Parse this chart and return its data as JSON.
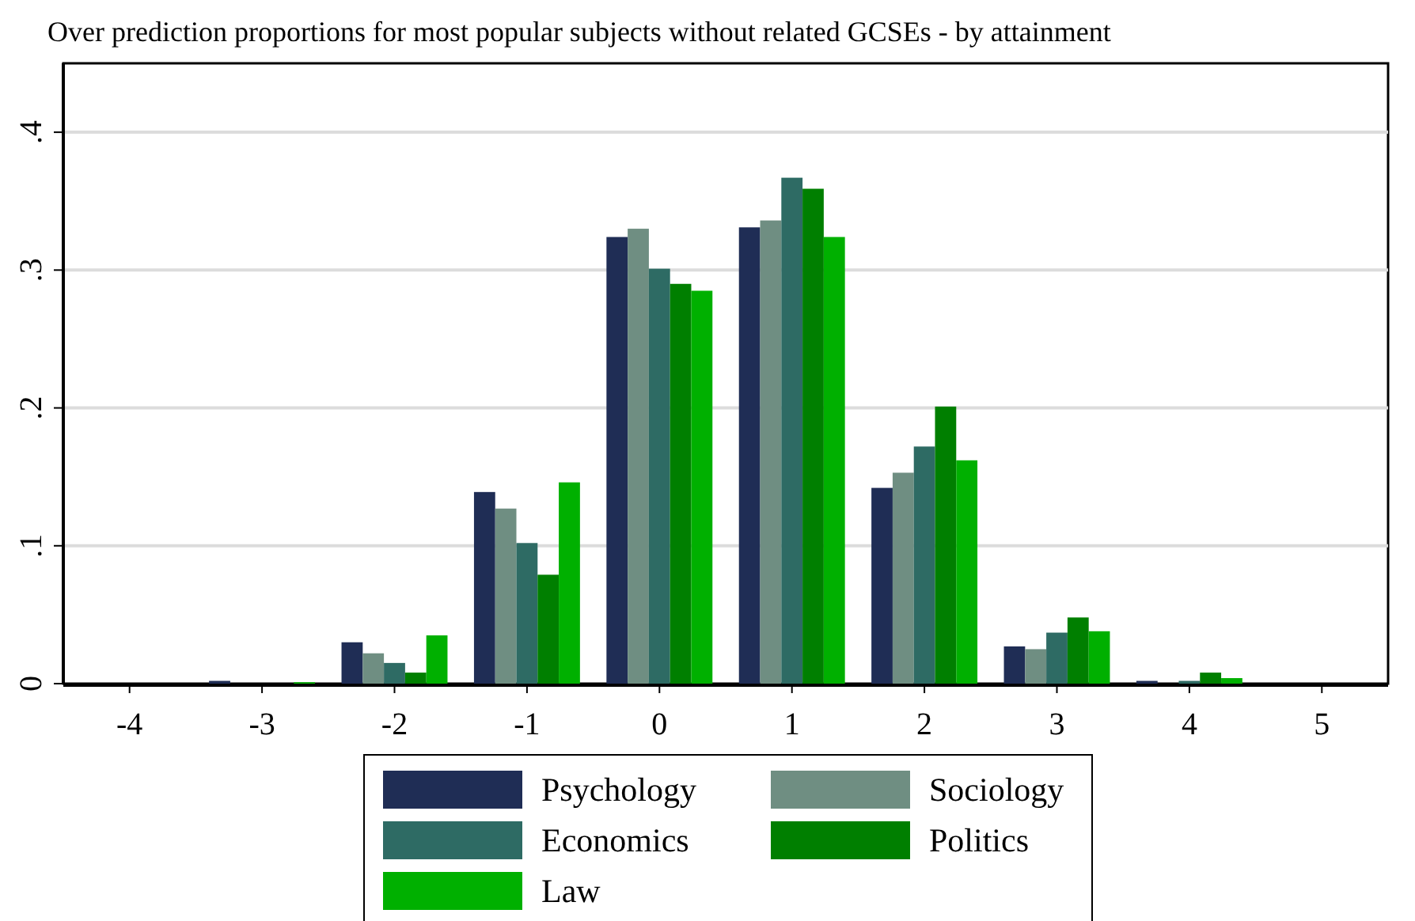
{
  "chart_data": {
    "type": "bar",
    "title": "Over prediction proportions for most popular subjects without related GCSEs - by attainment",
    "categories": [
      "-4",
      "-3",
      "-2",
      "-1",
      "0",
      "1",
      "2",
      "3",
      "4",
      "5"
    ],
    "series": [
      {
        "name": "Psychology",
        "color": "#1f2d55",
        "values": [
          0,
          0.002,
          0.03,
          0.139,
          0.324,
          0.331,
          0.142,
          0.027,
          0.002,
          0
        ]
      },
      {
        "name": "Sociology",
        "color": "#6f8e82",
        "values": [
          0,
          0,
          0.022,
          0.127,
          0.33,
          0.336,
          0.153,
          0.025,
          0,
          0
        ]
      },
      {
        "name": "Economics",
        "color": "#2e6b64",
        "values": [
          0,
          0,
          0.015,
          0.102,
          0.301,
          0.367,
          0.172,
          0.037,
          0.002,
          0
        ]
      },
      {
        "name": "Politics",
        "color": "#007f00",
        "values": [
          0,
          0,
          0.008,
          0.079,
          0.29,
          0.359,
          0.201,
          0.048,
          0.008,
          0
        ]
      },
      {
        "name": "Law",
        "color": "#00b000",
        "values": [
          0,
          0.001,
          0.035,
          0.146,
          0.285,
          0.324,
          0.162,
          0.038,
          0.004,
          0
        ]
      }
    ],
    "ylim": [
      0,
      0.45
    ],
    "yticks": [
      {
        "value": 0,
        "label": "0"
      },
      {
        "value": 0.1,
        "label": ".1"
      },
      {
        "value": 0.2,
        "label": ".2"
      },
      {
        "value": 0.3,
        "label": ".3"
      },
      {
        "value": 0.4,
        "label": ".4"
      }
    ],
    "grid": "y",
    "legend": "bottom"
  }
}
